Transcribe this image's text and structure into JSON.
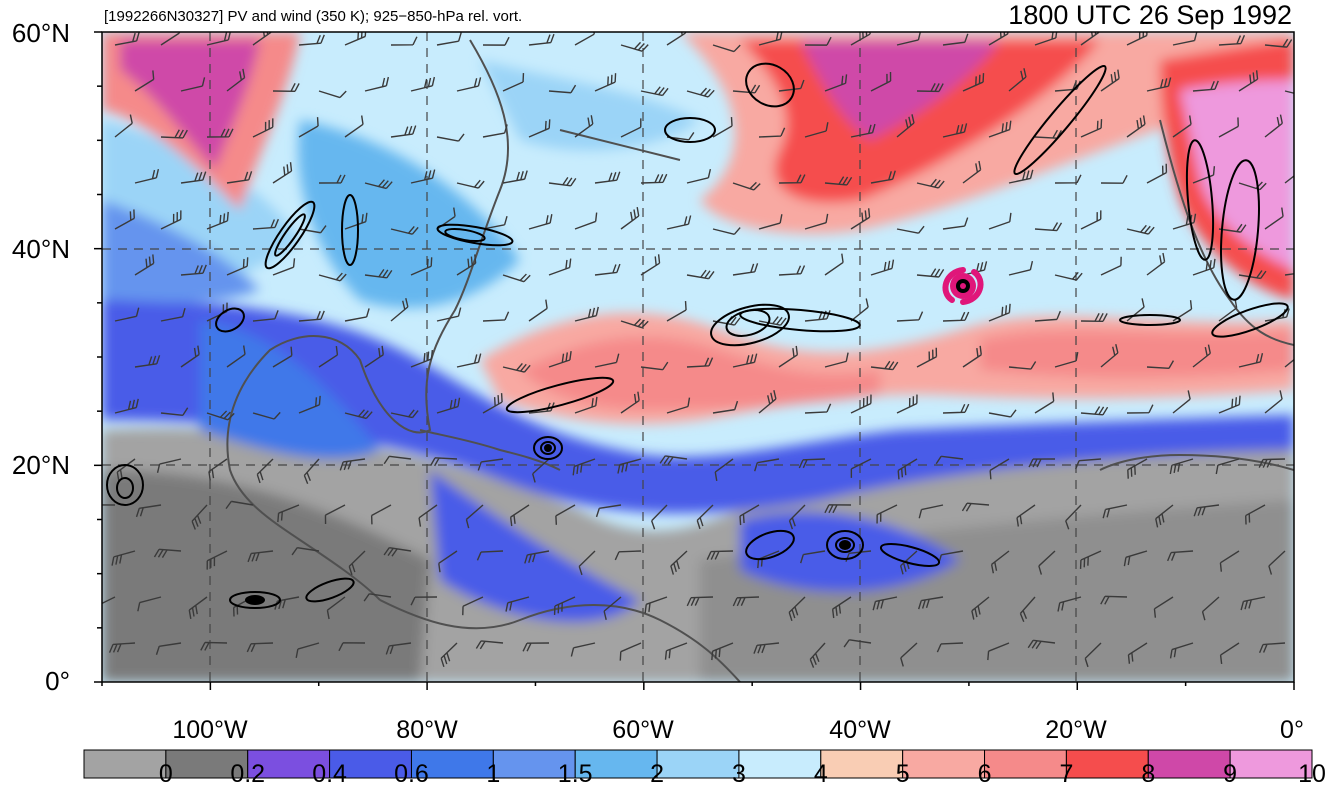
{
  "header": {
    "left_title": "[1992266N30327] PV and wind (350 K); 925−850-hPa rel. vort.",
    "right_title": "1800 UTC 26 Sep 1992"
  },
  "axes": {
    "lat_labels": [
      "60°N",
      "40°N",
      "20°N",
      "0°"
    ],
    "lon_labels": [
      "100°W",
      "80°W",
      "60°W",
      "40°W",
      "20°W",
      "0°"
    ],
    "lon_range": [
      -110,
      0
    ],
    "lat_range": [
      0,
      60
    ],
    "gridlines": "dashed"
  },
  "colorbar": {
    "labels": [
      "0",
      "0.2",
      "0.4",
      "0.6",
      "1",
      "1.5",
      "2",
      "3",
      "4",
      "5",
      "6",
      "7",
      "8",
      "9",
      "10"
    ],
    "colors": [
      "#a3a3a3",
      "#7a7a7a",
      "#7b4fe0",
      "#4a5be8",
      "#3f78e9",
      "#6594ee",
      "#66b7ef",
      "#9bd4f7",
      "#c8ecfd",
      "#f9cdb4",
      "#f8a9a2",
      "#f58a8a",
      "#f54d4d",
      "#cf48a8",
      "#ee99dd"
    ]
  },
  "storm_marker": {
    "color": "#e0167a",
    "lon": -31,
    "lat": 36.5
  }
}
